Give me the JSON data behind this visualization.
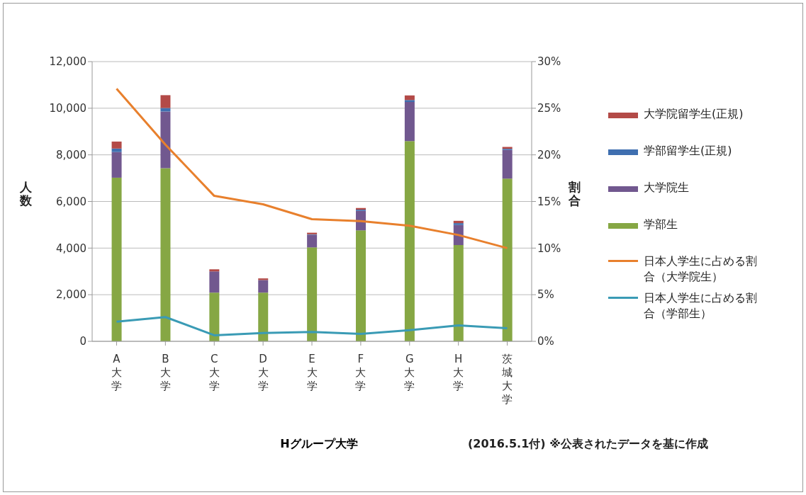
{
  "chart_data": {
    "type": "bar",
    "stacked": true,
    "xlabel": "Hグループ大学",
    "ylabel": "人数",
    "y2label": "割合",
    "categories": [
      "A大学",
      "B大学",
      "C大学",
      "D大学",
      "E大学",
      "F大学",
      "G大学",
      "H大学",
      "茨城大学"
    ],
    "series": [
      {
        "name": "学部生",
        "color": "#86a744",
        "values": [
          7020,
          7430,
          2090,
          2090,
          4030,
          4760,
          8590,
          4130,
          6980
        ]
      },
      {
        "name": "大学院生",
        "color": "#71588f",
        "values": [
          1100,
          2430,
          910,
          540,
          540,
          840,
          1680,
          860,
          1230
        ]
      },
      {
        "name": "学部留学生(正規)",
        "color": "#3f6fb0",
        "values": [
          150,
          150,
          null,
          null,
          20,
          50,
          80,
          80,
          50
        ]
      },
      {
        "name": "大学院留学生(正規)",
        "color": "#b34a47",
        "values": [
          300,
          550,
          90,
          70,
          70,
          70,
          200,
          100,
          80
        ]
      },
      {
        "name": "日本人学生に占める割合（大学院生）",
        "type": "line",
        "axis": "y2",
        "color": "#e8802d",
        "values": [
          27.1,
          21.1,
          15.6,
          14.7,
          13.1,
          12.9,
          12.4,
          11.4,
          10.0
        ]
      },
      {
        "name": "日本人学生に占める割合（学部生）",
        "type": "line",
        "axis": "y2",
        "color": "#3a9bb5",
        "values": [
          2.1,
          2.6,
          0.65,
          0.9,
          1.0,
          0.8,
          1.2,
          1.7,
          1.4
        ]
      }
    ],
    "ylim": [
      0,
      12000
    ],
    "yticks": [
      {
        "value": 0,
        "label": "0"
      },
      {
        "value": 2000,
        "label": "2,000"
      },
      {
        "value": 4000,
        "label": "4,000"
      },
      {
        "value": 6000,
        "label": "6,000"
      },
      {
        "value": 8000,
        "label": "8,000"
      },
      {
        "value": 10000,
        "label": "10,000"
      },
      {
        "value": 12000,
        "label": "12,000"
      }
    ],
    "y2lim": [
      0,
      30
    ],
    "y2ticks": [
      {
        "value": 0,
        "label": "0%"
      },
      {
        "value": 5,
        "label": "5%"
      },
      {
        "value": 10,
        "label": "10%"
      },
      {
        "value": 15,
        "label": "15%"
      },
      {
        "value": 20,
        "label": "20%"
      },
      {
        "value": 25,
        "label": "25%"
      },
      {
        "value": 30,
        "label": "30%"
      }
    ],
    "grid": "y",
    "legend": "right",
    "marker": "none",
    "annotations": [
      "(2016.5.1付) ※公表されたデータを基に作成"
    ]
  }
}
